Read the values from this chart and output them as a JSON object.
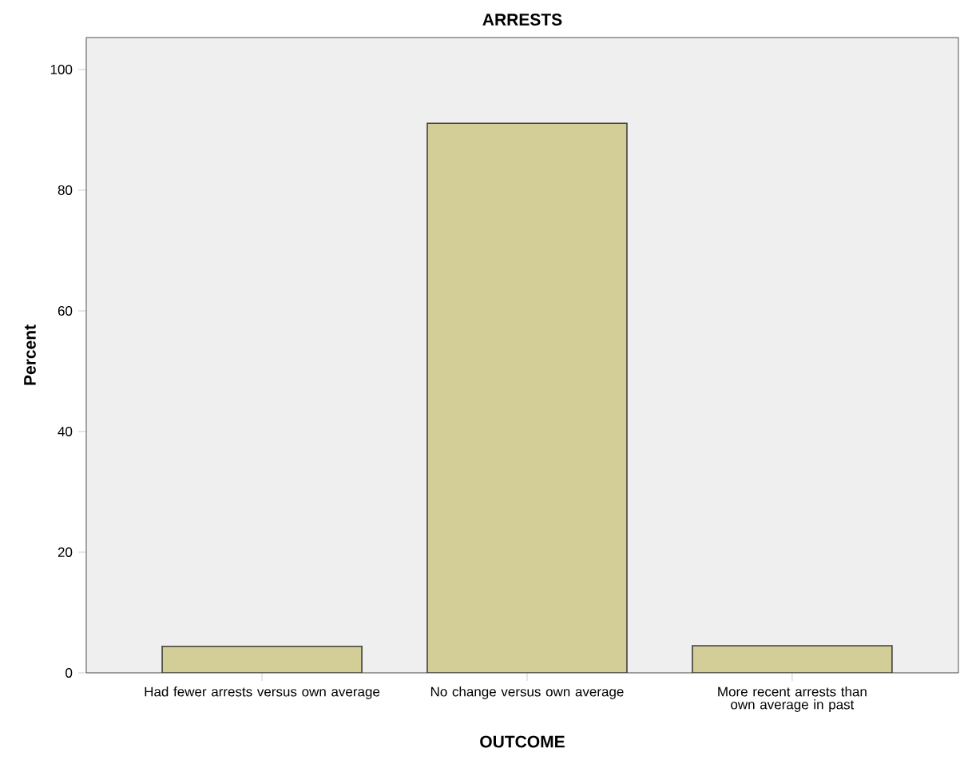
{
  "chart_data": {
    "type": "bar",
    "title": "ARRESTS",
    "xlabel": "OUTCOME",
    "ylabel": "Percent",
    "categories": [
      "Had fewer arrests versus own average",
      "No change versus own average",
      "More recent arrests than own average in past"
    ],
    "values": [
      4.4,
      91.1,
      4.5
    ],
    "color": "#d3cd97",
    "ylim": [
      0,
      105.3
    ],
    "yticks": [
      0,
      20,
      40,
      60,
      80,
      100
    ]
  }
}
